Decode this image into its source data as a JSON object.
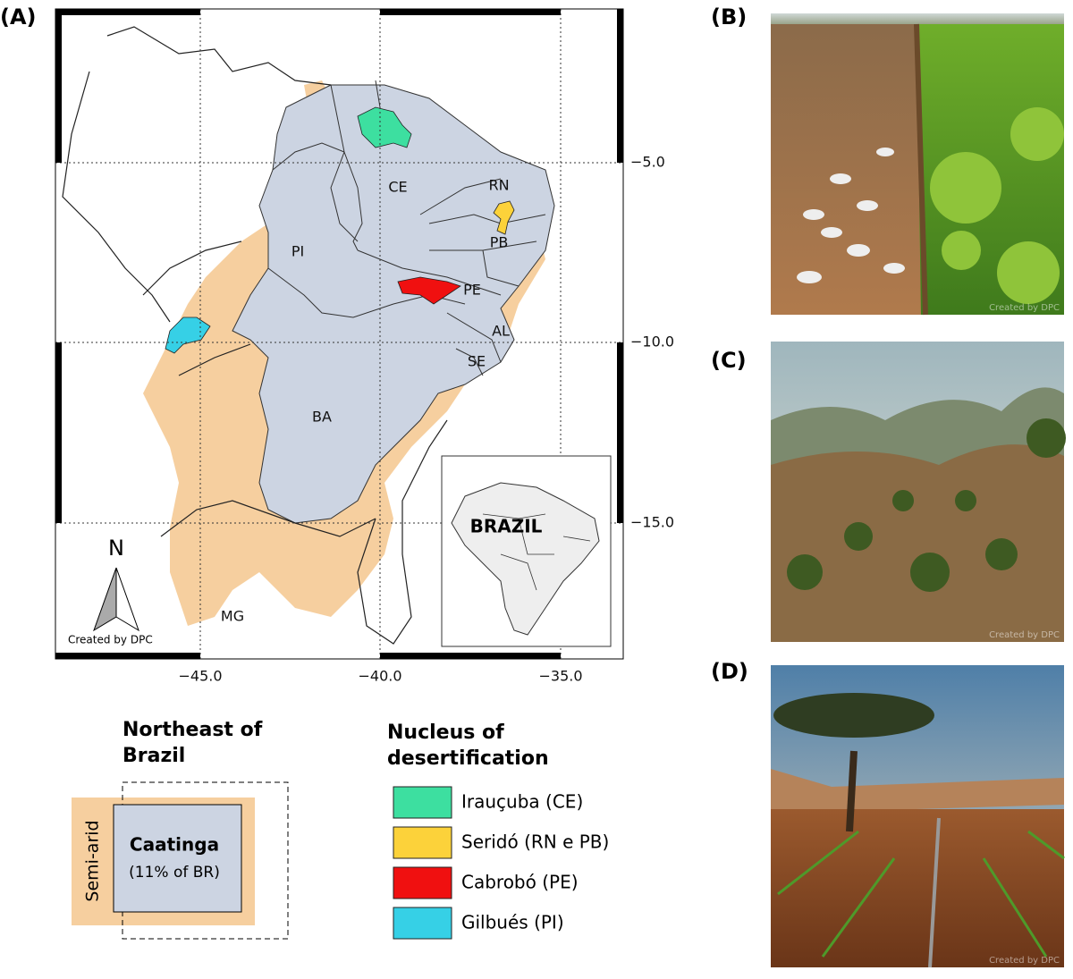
{
  "panels": {
    "a": "(A)",
    "b": "(B)",
    "c": "(C)",
    "d": "(D)"
  },
  "map": {
    "state_labels": [
      "CE",
      "RN",
      "PB",
      "PI",
      "PE",
      "AL",
      "SE",
      "BA",
      "MG"
    ],
    "x_ticks": [
      "−45.0",
      "−40.0",
      "−35.0"
    ],
    "y_ticks": [
      "−5.0",
      "−10.0",
      "−15.0"
    ],
    "north": "N",
    "credit": "Created by DPC",
    "inset_label": "BRAZIL"
  },
  "legend_region": {
    "title_lines": [
      "Northeast of",
      "Brazil"
    ],
    "semi_arid": "Semi-arid",
    "caatinga": "Caatinga",
    "caatinga_note": "(11% of BR)",
    "semi_arid_color": "#f6cf9f",
    "caatinga_color": "#ccd4e2"
  },
  "legend_nuclei": {
    "title_lines": [
      "Nucleus of",
      "desertification"
    ],
    "items": [
      {
        "label": "Irauçuba (CE)",
        "color": "#3ddfa0"
      },
      {
        "label": "Seridó (RN e PB)",
        "color": "#fcd23a"
      },
      {
        "label": "Cabrobó (PE)",
        "color": "#f01010"
      },
      {
        "label": "Gilbués (PI)",
        "color": "#36d0e6"
      }
    ]
  },
  "photo_credits": [
    "Created by DPC",
    "Created by DPC",
    "Created by DPC"
  ]
}
